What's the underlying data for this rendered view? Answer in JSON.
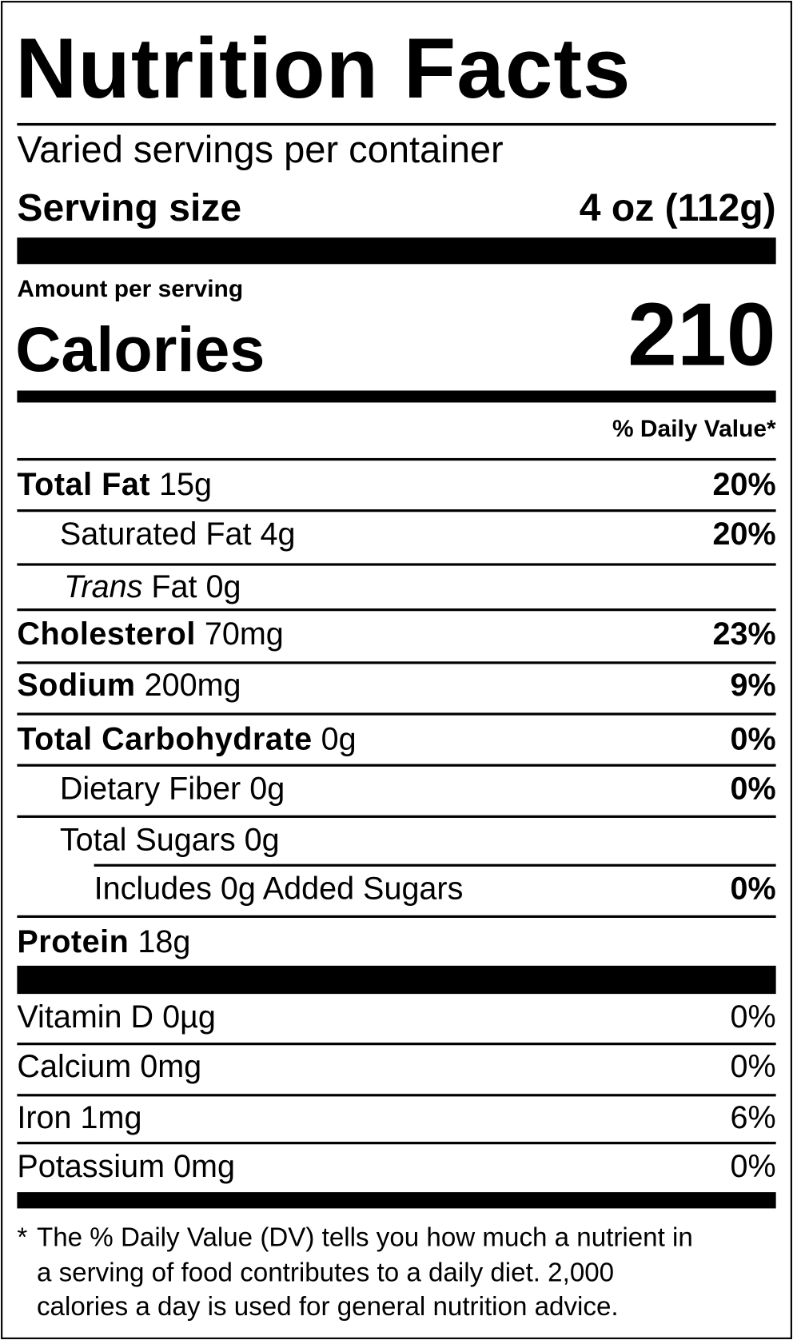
{
  "header": {
    "title": "Nutrition Facts",
    "servings": "Varied servings per container",
    "serving_size_label": "Serving size",
    "serving_size_value": "4 oz (112g)"
  },
  "calories": {
    "amount_label": "Amount per serving",
    "label": "Calories",
    "value": "210"
  },
  "dv_header": "% Daily Value*",
  "nutrients": [
    {
      "name": "Total Fat",
      "amount": "15g",
      "dv": "20%"
    },
    {
      "name": "Saturated Fat 4g",
      "dv": "20%"
    },
    {
      "name_italic": "Trans",
      "name": "Fat 0g"
    },
    {
      "name": "Cholesterol",
      "amount": "70mg",
      "dv": "23%"
    },
    {
      "name": "Sodium",
      "amount": "200mg",
      "dv": "9%"
    },
    {
      "name": "Total Carbohydrate",
      "amount": "0g",
      "dv": "0%"
    },
    {
      "name": "Dietary Fiber 0g",
      "dv": "0%"
    },
    {
      "name": "Total Sugars 0g"
    },
    {
      "name": "Includes 0g Added Sugars",
      "dv": "0%"
    },
    {
      "name": "Protein",
      "amount": "18g"
    }
  ],
  "vitamins": [
    {
      "name": "Vitamin D 0µg",
      "dv": "0%"
    },
    {
      "name": "Calcium 0mg",
      "dv": "0%"
    },
    {
      "name": "Iron 1mg",
      "dv": "6%"
    },
    {
      "name": "Potassium 0mg",
      "dv": "0%"
    }
  ],
  "footnote": {
    "marker": "*",
    "lines": [
      "The % Daily Value (DV) tells you how much a nutrient in",
      "a serving of food contributes to a daily diet. 2,000",
      "calories a day is used for general nutrition advice."
    ]
  }
}
